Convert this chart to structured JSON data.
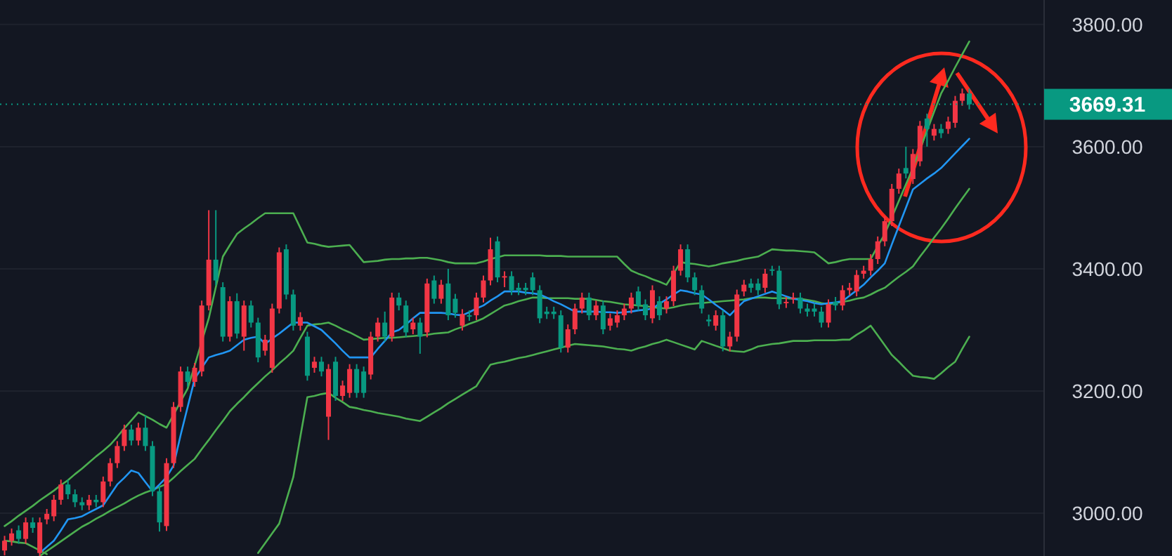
{
  "chart_data": {
    "type": "candlestick",
    "tick_labels": "y",
    "grid": "y",
    "ylim": [
      2930,
      3840
    ],
    "yticks": [
      {
        "value": 3000,
        "label": "3000.00"
      },
      {
        "value": 3200,
        "label": "3200.00"
      },
      {
        "value": 3400,
        "label": "3400.00"
      },
      {
        "value": 3600,
        "label": "3600.00"
      },
      {
        "value": 3800,
        "label": "3800.00"
      }
    ],
    "ref_lines": [
      {
        "axis": "y",
        "value": 3669.31,
        "label": "3669.31",
        "color": "#089981",
        "line_style": "dotted"
      }
    ],
    "categories": [
      null,
      null,
      null,
      null,
      null,
      null,
      null,
      null,
      null,
      null,
      null,
      null,
      null,
      null,
      null,
      null,
      null,
      null,
      null,
      null,
      null,
      null,
      null,
      null,
      null,
      null,
      null,
      null,
      null,
      null,
      null,
      null,
      null,
      null,
      null,
      null,
      null,
      null,
      null,
      null,
      null,
      null,
      null,
      null,
      null,
      null,
      null,
      null,
      null,
      null,
      null,
      null,
      null,
      null,
      null,
      null,
      null,
      null,
      null,
      null,
      null,
      null,
      null,
      null,
      null,
      null,
      null,
      null,
      null,
      null,
      null,
      null,
      null,
      null,
      null,
      null,
      null,
      null,
      null,
      null,
      null,
      null,
      null,
      null,
      null,
      null,
      null,
      null,
      null,
      null,
      null,
      null,
      null,
      null,
      null,
      null,
      null,
      null,
      null,
      null,
      null,
      null,
      null,
      null,
      null,
      null,
      null,
      null,
      null,
      null,
      null,
      null,
      null,
      null,
      null,
      null,
      null,
      null,
      null,
      null,
      null,
      null,
      null,
      null,
      null,
      null,
      null,
      null,
      null,
      null,
      null,
      null,
      null,
      null,
      null,
      null,
      null,
      null
    ],
    "series": [
      {
        "type": "line",
        "color": "#4caf50",
        "values": [
          2979,
          2987,
          2996,
          3004,
          3012,
          3021,
          3029,
          3037,
          3046,
          3054,
          3064,
          3073,
          3083,
          3093,
          3102,
          3112,
          3125,
          3139,
          3152,
          3165,
          3159,
          3153,
          3146,
          3140,
          3161,
          3183,
          3204,
          3242,
          3281,
          3319,
          3370,
          3420,
          3439,
          3457,
          3466,
          3474,
          3483,
          3491,
          3491,
          3491,
          3491,
          3491,
          3467,
          3443,
          3441,
          3438,
          3436,
          3437,
          3438,
          3439,
          3425,
          3411,
          3412,
          3413,
          3415,
          3416,
          3416,
          3417,
          3417,
          3418,
          3418,
          3416,
          3414,
          3411,
          3409,
          3409,
          3409,
          3409,
          3412,
          3416,
          3419,
          3422,
          3422,
          3422,
          3422,
          3422,
          3422,
          3421,
          3421,
          3421,
          3420,
          3420,
          3420,
          3420,
          3420,
          3420,
          3420,
          3420,
          3408,
          3397,
          3392,
          3388,
          3383,
          3379,
          3374,
          3392,
          3411,
          3409,
          3408,
          3406,
          3404,
          3406,
          3409,
          3411,
          3413,
          3416,
          3418,
          3420,
          3426,
          3432,
          3431,
          3430,
          3430,
          3429,
          3428,
          3427,
          3418,
          3409,
          3411,
          3414,
          3416,
          3416,
          3416,
          3416,
          3437,
          3457,
          3484,
          3511,
          3538,
          3565,
          3596,
          3626,
          3657,
          3687,
          3708,
          3730,
          3751,
          3772
        ]
      },
      {
        "type": "line",
        "color": "#4caf50",
        "values": [
          null,
          null,
          null,
          null,
          null,
          2930,
          2938,
          2946,
          2954,
          2962,
          2970,
          2978,
          2984,
          2991,
          2997,
          3004,
          3010,
          3016,
          3023,
          3029,
          3034,
          3038,
          3043,
          3048,
          3058,
          3069,
          3079,
          3089,
          3105,
          3120,
          3136,
          3151,
          3167,
          3179,
          3190,
          3202,
          3213,
          3224,
          3234,
          3245,
          3255,
          3266,
          3287,
          3307,
          3309,
          3310,
          3312,
          3307,
          3301,
          3296,
          3290,
          3284,
          3285,
          3286,
          3287,
          3287,
          3288,
          3289,
          3290,
          3291,
          3292,
          3294,
          3295,
          3296,
          3301,
          3305,
          3310,
          3314,
          3319,
          3326,
          3333,
          3340,
          3343,
          3347,
          3350,
          3353,
          3353,
          3352,
          3352,
          3352,
          3352,
          3351,
          3351,
          3351,
          3349,
          3347,
          3346,
          3344,
          3342,
          3341,
          3340,
          3339,
          3337,
          3336,
          3335,
          3337,
          3340,
          3342,
          3343,
          3344,
          3345,
          3346,
          3347,
          3348,
          3349,
          3350,
          3352,
          3353,
          3353,
          3352,
          3352,
          3352,
          3351,
          3351,
          3349,
          3347,
          3344,
          3342,
          3344,
          3346,
          3348,
          3351,
          3353,
          3358,
          3364,
          3369,
          3378,
          3387,
          3395,
          3404,
          3420,
          3435,
          3451,
          3466,
          3482,
          3499,
          3515,
          3531
        ]
      },
      {
        "type": "line",
        "color": "#4caf50",
        "values": [
          2955,
          2954,
          2952,
          2951,
          2945,
          2939,
          2933,
          null,
          null,
          null,
          null,
          null,
          null,
          null,
          null,
          null,
          null,
          null,
          null,
          null,
          null,
          null,
          null,
          null,
          null,
          null,
          null,
          null,
          null,
          null,
          null,
          null,
          null,
          null,
          null,
          null,
          2935,
          2951,
          2967,
          2983,
          3021,
          3059,
          3125,
          3190,
          3192,
          3195,
          3197,
          3189,
          3182,
          3174,
          3172,
          3169,
          3167,
          3164,
          3162,
          3160,
          3158,
          3155,
          3153,
          3151,
          3158,
          3165,
          3172,
          3180,
          3187,
          3194,
          3201,
          3208,
          3226,
          3243,
          3246,
          3248,
          3251,
          3254,
          3256,
          3259,
          3262,
          3265,
          3268,
          3271,
          3274,
          3277,
          3276,
          3275,
          3274,
          3273,
          3271,
          3269,
          3268,
          3266,
          3270,
          3273,
          3277,
          3280,
          3284,
          3280,
          3276,
          3272,
          3268,
          3282,
          3278,
          3274,
          3270,
          3266,
          3265,
          3264,
          3268,
          3273,
          3275,
          3277,
          3278,
          3280,
          3282,
          3282,
          3282,
          3283,
          3283,
          3283,
          3283,
          3284,
          3284,
          3292,
          3299,
          3307,
          3291,
          3275,
          3259,
          3248,
          3236,
          3225,
          3223,
          3222,
          3220,
          3229,
          3239,
          3248,
          3269,
          3289
        ]
      },
      {
        "type": "line",
        "color": "#2196f3",
        "values": [
          null,
          null,
          null,
          null,
          null,
          2935,
          2945,
          2955,
          2972,
          2990,
          2992,
          2995,
          3001,
          3007,
          3013,
          3030,
          3047,
          3058,
          3070,
          3066,
          3051,
          3036,
          3047,
          3059,
          3078,
          3128,
          3174,
          3220,
          3238,
          3255,
          3259,
          3262,
          3266,
          3275,
          3284,
          3287,
          3289,
          3277,
          3286,
          3294,
          3303,
          3312,
          3312,
          3312,
          3306,
          3300,
          3289,
          3278,
          3266,
          3255,
          3255,
          3255,
          3255,
          3269,
          3282,
          3296,
          3300,
          3309,
          3319,
          3328,
          3328,
          3328,
          3328,
          3327,
          3325,
          3324,
          3329,
          3335,
          3340,
          3348,
          3355,
          3363,
          3363,
          3363,
          3361,
          3360,
          3358,
          3353,
          3347,
          3342,
          3336,
          3330,
          3330,
          3330,
          3330,
          3329,
          3329,
          3328,
          3329,
          3330,
          3332,
          3333,
          3335,
          3343,
          3350,
          3358,
          3365,
          3363,
          3360,
          3358,
          3350,
          3341,
          3333,
          3324,
          3336,
          3347,
          3351,
          3355,
          3359,
          3363,
          3359,
          3355,
          3351,
          3349,
          3347,
          3344,
          3342,
          3344,
          3345,
          3347,
          3356,
          3365,
          3374,
          3386,
          3397,
          3409,
          3440,
          3470,
          3500,
          3530,
          3539,
          3548,
          3556,
          3565,
          3577,
          3589,
          3601,
          3613
        ]
      },
      {
        "type": "candlestick",
        "colors": [
          "#f23645",
          "#f23645",
          "#089981",
          "#f23645",
          "#089981",
          "#f23645",
          "#f23645",
          "#f23645",
          "#f23645",
          "#089981",
          "#089981",
          "#089981",
          "#f23645",
          "#089981",
          "#f23645",
          "#f23645",
          "#f23645",
          "#f23645",
          "#089981",
          "#f23645",
          "#089981",
          "#089981",
          "#089981",
          "#f23645",
          "#f23645",
          "#f23645",
          "#089981",
          "#f23645",
          "#f23645",
          "#f23645",
          "#089981",
          "#089981",
          "#f23645",
          "#089981",
          "#f23645",
          "#089981",
          "#089981",
          "#f23645",
          "#f23645",
          "#f23645",
          "#089981",
          "#089981",
          "#f23645",
          "#089981",
          "#f23645",
          "#089981",
          "#f23645",
          "#089981",
          "#f23645",
          "#f23645",
          "#089981",
          "#089981",
          "#f23645",
          "#f23645",
          "#089981",
          "#f23645",
          "#089981",
          "#089981",
          "#f23645",
          "#089981",
          "#f23645",
          "#089981",
          "#f23645",
          "#089981",
          "#089981",
          "#f23645",
          "#089981",
          "#f23645",
          "#f23645",
          "#f23645",
          "#089981",
          "#f23645",
          "#089981",
          "#089981",
          "#089981",
          "#089981",
          "#089981",
          "#089981",
          "#089981",
          "#089981",
          "#f23645",
          "#f23645",
          "#f23645",
          "#089981",
          "#f23645",
          "#089981",
          "#f23645",
          "#f23645",
          "#f23645",
          "#f23645",
          "#089981",
          "#089981",
          "#f23645",
          "#089981",
          "#f23645",
          "#f23645",
          "#f23645",
          "#089981",
          "#089981",
          "#089981",
          "#089981",
          "#f23645",
          "#089981",
          "#f23645",
          "#f23645",
          "#f23645",
          "#089981",
          "#089981",
          "#f23645",
          "#089981",
          "#089981",
          "#f23645",
          "#f23645",
          "#089981",
          "#089981",
          "#089981",
          "#089981",
          "#f23645",
          "#089981",
          "#f23645",
          "#f23645",
          "#f23645",
          "#f23645",
          "#f23645",
          "#f23645",
          "#f23645",
          "#f23645",
          "#f23645",
          "#089981",
          "#f23645",
          "#f23645",
          "#089981",
          "#f23645",
          "#089981",
          "#f23645",
          "#f23645",
          "#f23645",
          "#089981"
        ],
        "ohlc": [
          [
            2939,
            2963,
            2931,
            2955
          ],
          [
            2955,
            2975,
            2947,
            2967
          ],
          [
            2972,
            2980,
            2950,
            2958
          ],
          [
            2958,
            2993,
            2950,
            2985
          ],
          [
            2985,
            2993,
            2968,
            2976
          ],
          [
            2935,
            2993,
            2930,
            2985
          ],
          [
            2990,
            3007,
            2982,
            2999
          ],
          [
            2995,
            3030,
            2987,
            3022
          ],
          [
            3022,
            3055,
            3014,
            3047
          ],
          [
            3047,
            3055,
            3023,
            3031
          ],
          [
            3031,
            3039,
            3010,
            3018
          ],
          [
            3018,
            3026,
            3005,
            3013
          ],
          [
            3013,
            3030,
            3005,
            3022
          ],
          [
            3022,
            3030,
            3010,
            3018
          ],
          [
            3018,
            3060,
            3010,
            3052
          ],
          [
            3052,
            3090,
            3044,
            3082
          ],
          [
            3082,
            3118,
            3074,
            3110
          ],
          [
            3110,
            3145,
            3102,
            3137
          ],
          [
            3137,
            3145,
            3111,
            3119
          ],
          [
            3119,
            3148,
            3111,
            3140
          ],
          [
            3140,
            3160,
            3102,
            3110
          ],
          [
            3110,
            3118,
            3028,
            3036
          ],
          [
            3036,
            3044,
            2970,
            2985
          ],
          [
            2979,
            3090,
            2971,
            3082
          ],
          [
            3082,
            3182,
            3074,
            3174
          ],
          [
            3174,
            3240,
            3166,
            3232
          ],
          [
            3232,
            3240,
            3207,
            3215
          ],
          [
            3215,
            3246,
            3207,
            3238
          ],
          [
            3232,
            3348,
            3224,
            3340
          ],
          [
            3340,
            3496,
            3332,
            3415
          ],
          [
            3415,
            3496,
            3373,
            3381
          ],
          [
            3370,
            3378,
            3281,
            3289
          ],
          [
            3289,
            3355,
            3281,
            3347
          ],
          [
            3347,
            3360,
            3286,
            3294
          ],
          [
            3289,
            3348,
            3266,
            3340
          ],
          [
            3340,
            3348,
            3304,
            3312
          ],
          [
            3312,
            3320,
            3247,
            3255
          ],
          [
            3266,
            3292,
            3258,
            3284
          ],
          [
            3238,
            3343,
            3230,
            3335
          ],
          [
            3335,
            3435,
            3327,
            3427
          ],
          [
            3432,
            3440,
            3350,
            3358
          ],
          [
            3358,
            3366,
            3299,
            3307
          ],
          [
            3307,
            3329,
            3299,
            3321
          ],
          [
            3289,
            3297,
            3217,
            3225
          ],
          [
            3238,
            3256,
            3230,
            3248
          ],
          [
            3248,
            3256,
            3224,
            3232
          ],
          [
            3158,
            3244,
            3120,
            3236
          ],
          [
            3248,
            3256,
            3184,
            3192
          ],
          [
            3192,
            3217,
            3184,
            3209
          ],
          [
            3197,
            3244,
            3189,
            3236
          ],
          [
            3236,
            3244,
            3189,
            3197
          ],
          [
            3232,
            3240,
            3189,
            3197
          ],
          [
            3227,
            3297,
            3219,
            3289
          ],
          [
            3289,
            3320,
            3281,
            3312
          ],
          [
            3312,
            3330,
            3281,
            3289
          ],
          [
            3289,
            3361,
            3281,
            3353
          ],
          [
            3353,
            3361,
            3332,
            3340
          ],
          [
            3340,
            3348,
            3288,
            3296
          ],
          [
            3301,
            3320,
            3293,
            3312
          ],
          [
            3312,
            3320,
            3261,
            3289
          ],
          [
            3296,
            3384,
            3288,
            3376
          ],
          [
            3381,
            3389,
            3343,
            3351
          ],
          [
            3351,
            3382,
            3343,
            3374
          ],
          [
            3376,
            3400,
            3316,
            3324
          ],
          [
            3351,
            3359,
            3320,
            3328
          ],
          [
            3307,
            3334,
            3299,
            3326
          ],
          [
            3324,
            3332,
            3315,
            3323
          ],
          [
            3324,
            3361,
            3316,
            3353
          ],
          [
            3353,
            3389,
            3345,
            3381
          ],
          [
            3381,
            3451,
            3373,
            3432
          ],
          [
            3445,
            3453,
            3378,
            3386
          ],
          [
            3386,
            3396,
            3370,
            3388
          ],
          [
            3388,
            3396,
            3357,
            3365
          ],
          [
            3369,
            3377,
            3357,
            3365
          ],
          [
            3369,
            3377,
            3357,
            3365
          ],
          [
            3386,
            3394,
            3357,
            3365
          ],
          [
            3365,
            3373,
            3311,
            3319
          ],
          [
            3330,
            3338,
            3318,
            3326
          ],
          [
            3330,
            3338,
            3318,
            3326
          ],
          [
            3324,
            3332,
            3263,
            3271
          ],
          [
            3271,
            3309,
            3263,
            3301
          ],
          [
            3301,
            3343,
            3293,
            3335
          ],
          [
            3335,
            3361,
            3327,
            3353
          ],
          [
            3353,
            3361,
            3316,
            3324
          ],
          [
            3324,
            3348,
            3316,
            3340
          ],
          [
            3340,
            3348,
            3293,
            3301
          ],
          [
            3307,
            3327,
            3299,
            3319
          ],
          [
            3312,
            3332,
            3304,
            3324
          ],
          [
            3324,
            3343,
            3316,
            3335
          ],
          [
            3335,
            3361,
            3327,
            3353
          ],
          [
            3363,
            3371,
            3332,
            3340
          ],
          [
            3342,
            3350,
            3316,
            3324
          ],
          [
            3319,
            3373,
            3311,
            3365
          ],
          [
            3347,
            3355,
            3316,
            3324
          ],
          [
            3335,
            3355,
            3327,
            3347
          ],
          [
            3347,
            3405,
            3339,
            3397
          ],
          [
            3397,
            3440,
            3389,
            3432
          ],
          [
            3432,
            3440,
            3378,
            3386
          ],
          [
            3386,
            3394,
            3357,
            3365
          ],
          [
            3365,
            3373,
            3327,
            3335
          ],
          [
            3317,
            3325,
            3306,
            3314
          ],
          [
            3307,
            3332,
            3299,
            3324
          ],
          [
            3324,
            3332,
            3265,
            3273
          ],
          [
            3273,
            3297,
            3265,
            3289
          ],
          [
            3289,
            3366,
            3281,
            3358
          ],
          [
            3363,
            3382,
            3355,
            3374
          ],
          [
            3376,
            3384,
            3361,
            3369
          ],
          [
            3376,
            3384,
            3357,
            3365
          ],
          [
            3369,
            3400,
            3361,
            3392
          ],
          [
            3399,
            3405,
            3389,
            3397
          ],
          [
            3397,
            3405,
            3334,
            3342
          ],
          [
            3344,
            3354,
            3336,
            3346
          ],
          [
            3351,
            3361,
            3343,
            3353
          ],
          [
            3353,
            3361,
            3327,
            3335
          ],
          [
            3335,
            3343,
            3322,
            3330
          ],
          [
            3335,
            3343,
            3322,
            3330
          ],
          [
            3330,
            3338,
            3304,
            3312
          ],
          [
            3312,
            3350,
            3304,
            3342
          ],
          [
            3346,
            3354,
            3332,
            3340
          ],
          [
            3340,
            3373,
            3332,
            3365
          ],
          [
            3365,
            3377,
            3357,
            3369
          ],
          [
            3363,
            3398,
            3355,
            3390
          ],
          [
            3392,
            3405,
            3384,
            3397
          ],
          [
            3397,
            3424,
            3389,
            3416
          ],
          [
            3416,
            3453,
            3408,
            3445
          ],
          [
            3445,
            3486,
            3437,
            3478
          ],
          [
            3478,
            3539,
            3470,
            3531
          ],
          [
            3531,
            3564,
            3523,
            3556
          ],
          [
            3565,
            3600,
            3548,
            3556
          ],
          [
            3547,
            3596,
            3539,
            3588
          ],
          [
            3576,
            3642,
            3568,
            3634
          ],
          [
            3646,
            3654,
            3600,
            3629
          ],
          [
            3618,
            3637,
            3610,
            3629
          ],
          [
            3629,
            3637,
            3614,
            3622
          ],
          [
            3629,
            3649,
            3621,
            3641
          ],
          [
            3639,
            3683,
            3631,
            3675
          ],
          [
            3675,
            3695,
            3667,
            3687
          ],
          [
            3687,
            3695,
            3661,
            3669.31
          ]
        ]
      }
    ]
  }
}
